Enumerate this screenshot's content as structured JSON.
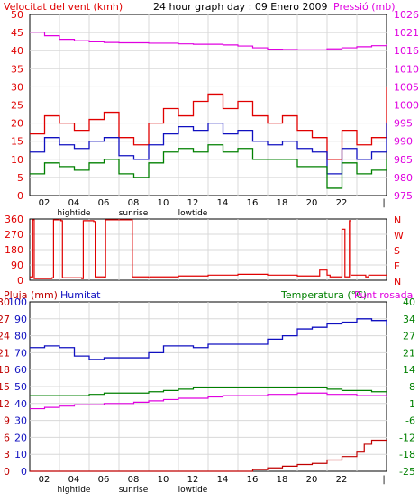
{
  "chart_data": [
    {
      "type": "line",
      "title": "24 hour graph day : 09 Enero 2009",
      "left_label": "Velocitat del vent (kmh)",
      "right_label": "Pressió (mb)",
      "ylim": [
        0,
        50
      ],
      "yticks": [
        0,
        5,
        10,
        15,
        20,
        25,
        30,
        35,
        40,
        45,
        50
      ],
      "y2lim": [
        975,
        1026
      ],
      "y2ticks": [
        975,
        980,
        985,
        990,
        995,
        1000,
        1005,
        1010,
        1016,
        1021,
        1026
      ],
      "xticks": [
        "02",
        "04",
        "06",
        "08",
        "10",
        "12",
        "14",
        "16",
        "18",
        "20",
        "22",
        "|"
      ],
      "xmarkers": [
        {
          "label": "hightide",
          "at": "04"
        },
        {
          "label": "sunrise",
          "at": "08"
        },
        {
          "label": "lowtide",
          "at": "12"
        }
      ],
      "colors": {
        "gust": "#e00000",
        "speed": "#1010c0",
        "min": "#008000",
        "pressure": "#e000e0"
      },
      "series": [
        {
          "key": "gust",
          "x": [
            0,
            1,
            2,
            3,
            4,
            5,
            6,
            7,
            8,
            9,
            10,
            11,
            12,
            13,
            14,
            15,
            16,
            17,
            18,
            19,
            20,
            21,
            22,
            23,
            24
          ],
          "values": [
            17,
            22,
            20,
            18,
            21,
            23,
            16,
            14,
            20,
            24,
            22,
            26,
            28,
            24,
            26,
            22,
            20,
            22,
            18,
            16,
            10,
            18,
            14,
            16,
            30
          ]
        },
        {
          "key": "speed",
          "x": [
            0,
            1,
            2,
            3,
            4,
            5,
            6,
            7,
            8,
            9,
            10,
            11,
            12,
            13,
            14,
            15,
            16,
            17,
            18,
            19,
            20,
            21,
            22,
            23,
            24
          ],
          "values": [
            12,
            16,
            14,
            13,
            15,
            16,
            11,
            10,
            14,
            17,
            19,
            18,
            20,
            17,
            18,
            15,
            14,
            15,
            13,
            12,
            6,
            13,
            10,
            12,
            20
          ]
        },
        {
          "key": "min",
          "x": [
            0,
            1,
            2,
            3,
            4,
            5,
            6,
            7,
            8,
            9,
            10,
            11,
            12,
            13,
            14,
            15,
            16,
            17,
            18,
            19,
            20,
            21,
            22,
            23,
            24
          ],
          "values": [
            6,
            9,
            8,
            7,
            9,
            10,
            6,
            5,
            9,
            12,
            13,
            12,
            14,
            12,
            13,
            10,
            10,
            10,
            8,
            8,
            2,
            9,
            6,
            7,
            10
          ]
        },
        {
          "key": "pressure",
          "axis": "right",
          "x": [
            0,
            1,
            2,
            3,
            4,
            5,
            6,
            7,
            8,
            9,
            10,
            11,
            12,
            13,
            14,
            15,
            16,
            17,
            18,
            19,
            20,
            21,
            22,
            23,
            24
          ],
          "values": [
            1021,
            1020,
            1019,
            1018.6,
            1018.3,
            1018.1,
            1018,
            1018,
            1017.9,
            1017.9,
            1017.7,
            1017.6,
            1017.6,
            1017.4,
            1017.1,
            1016.6,
            1016.2,
            1016.1,
            1016,
            1016,
            1016.3,
            1016.6,
            1016.9,
            1017.2,
            1017.6
          ]
        }
      ]
    },
    {
      "type": "line",
      "left_label": "",
      "right_label": "N W S E N",
      "ylim": [
        0,
        360
      ],
      "yticks": [
        0,
        90,
        180,
        270,
        360
      ],
      "right_ticks": [
        "N",
        "W",
        "S",
        "E",
        "N"
      ],
      "colors": {
        "direction": "#e00000"
      },
      "series": [
        {
          "key": "direction",
          "x": [
            0,
            0.2,
            0.3,
            1.5,
            1.6,
            2.1,
            2.2,
            3.5,
            3.6,
            4.3,
            4.4,
            5.0,
            5.1,
            6.8,
            6.9,
            8.0,
            8.1,
            10,
            12,
            14,
            16,
            18,
            19.5,
            20,
            20.2,
            21,
            21.2,
            21.5,
            21.6,
            22.6,
            22.8,
            24
          ],
          "values": [
            20,
            355,
            10,
            15,
            355,
            350,
            15,
            10,
            350,
            345,
            20,
            15,
            355,
            355,
            20,
            15,
            20,
            25,
            30,
            35,
            30,
            25,
            60,
            30,
            20,
            300,
            20,
            350,
            30,
            20,
            30,
            25
          ]
        }
      ]
    },
    {
      "type": "line",
      "left_label": "Pluja (mm)",
      "left2_label": "Humitat",
      "right_label": "Temperatura (°C)",
      "right2_label": "Punt rosada",
      "ylim": [
        0,
        100
      ],
      "rain_ticks": [
        0,
        3,
        6,
        9,
        12,
        15,
        18,
        21,
        24,
        27,
        30
      ],
      "humidity_ticks": [
        0,
        10,
        20,
        30,
        40,
        50,
        60,
        70,
        80,
        90,
        100
      ],
      "temp_ticks": [
        -25,
        -18,
        -12,
        -6,
        1,
        8,
        14,
        21,
        27,
        34,
        40
      ],
      "xticks": [
        "02",
        "04",
        "06",
        "08",
        "10",
        "12",
        "14",
        "16",
        "18",
        "20",
        "22",
        "|"
      ],
      "xmarkers": [
        {
          "label": "hightide",
          "at": "04"
        },
        {
          "label": "sunrise",
          "at": "08"
        },
        {
          "label": "lowtide",
          "at": "12"
        }
      ],
      "colors": {
        "humidity": "#1010c0",
        "temperature": "#008000",
        "dewpoint": "#e000e0",
        "rain": "#c00000"
      },
      "series": [
        {
          "key": "humidity",
          "x": [
            0,
            1,
            2,
            3,
            4,
            5,
            6,
            7,
            8,
            9,
            10,
            11,
            12,
            13,
            14,
            15,
            16,
            17,
            18,
            19,
            20,
            21,
            22,
            23,
            24
          ],
          "values": [
            73,
            74,
            73,
            68,
            66,
            67,
            67,
            67,
            70,
            74,
            74,
            73,
            75,
            75,
            75,
            75,
            78,
            80,
            84,
            85,
            87,
            88,
            90,
            89,
            86
          ]
        },
        {
          "key": "temperature",
          "x": [
            0,
            1,
            2,
            3,
            4,
            5,
            6,
            7,
            8,
            9,
            10,
            11,
            12,
            13,
            14,
            15,
            16,
            17,
            18,
            19,
            20,
            21,
            22,
            23,
            24
          ],
          "values": [
            4,
            4,
            4,
            4,
            4.5,
            5,
            5,
            5,
            5.5,
            6,
            6.5,
            7,
            7,
            7,
            7,
            7,
            7,
            7,
            7,
            7,
            6.5,
            6,
            6,
            5.5,
            5.5
          ]
        },
        {
          "key": "dewpoint",
          "x": [
            0,
            1,
            2,
            3,
            4,
            5,
            6,
            7,
            8,
            9,
            10,
            11,
            12,
            13,
            14,
            15,
            16,
            17,
            18,
            19,
            20,
            21,
            22,
            23,
            24
          ],
          "values": [
            -1,
            -0.5,
            0,
            0.5,
            0.5,
            1,
            1,
            1.5,
            2,
            2.5,
            3,
            3,
            3.5,
            4,
            4,
            4,
            4.5,
            4.5,
            5,
            5,
            4.5,
            4.5,
            4,
            4,
            3.5
          ]
        },
        {
          "key": "rain",
          "x": [
            0,
            2,
            4,
            6,
            8,
            10,
            12,
            14,
            15,
            16,
            17,
            18,
            19,
            20,
            21,
            22,
            22.5,
            23,
            24
          ],
          "values": [
            0,
            0,
            0,
            0,
            0,
            0,
            0,
            0,
            0.3,
            0.6,
            0.9,
            1.2,
            1.4,
            2,
            2.6,
            3.4,
            4.8,
            5.5,
            5.6
          ]
        }
      ]
    }
  ]
}
